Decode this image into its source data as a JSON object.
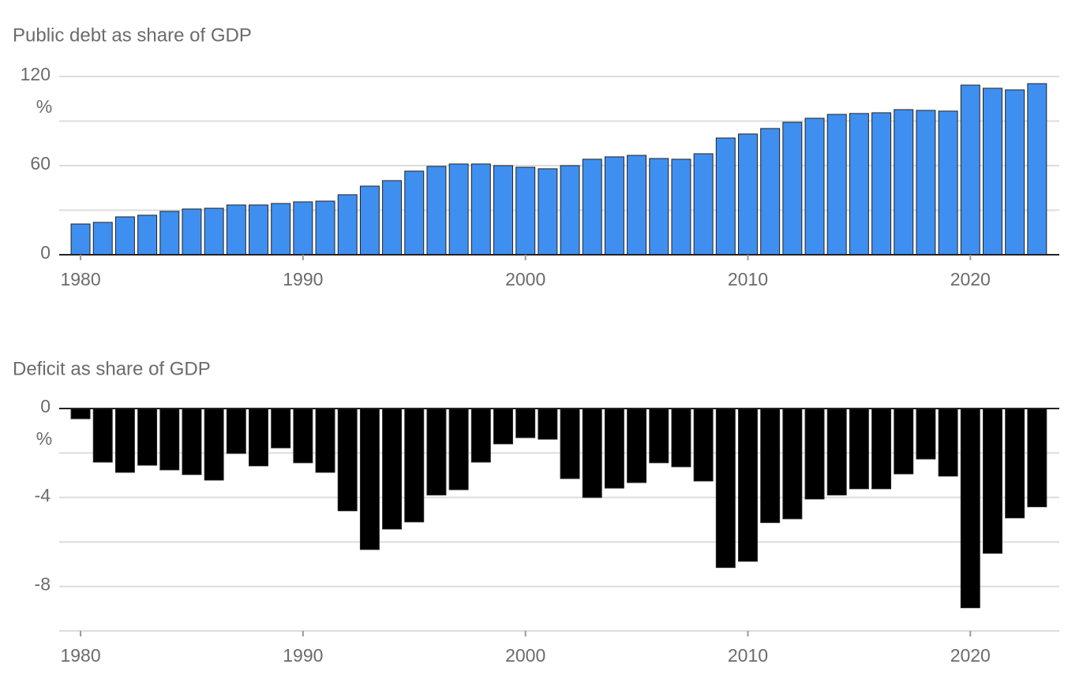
{
  "chart_data": [
    {
      "type": "bar",
      "title": "Public debt as share of GDP",
      "y_unit": "%",
      "x": [
        1980,
        1981,
        1982,
        1983,
        1984,
        1985,
        1986,
        1987,
        1988,
        1989,
        1990,
        1991,
        1992,
        1993,
        1994,
        1995,
        1996,
        1997,
        1998,
        1999,
        2000,
        2001,
        2002,
        2003,
        2004,
        2005,
        2006,
        2007,
        2008,
        2009,
        2010,
        2011,
        2012,
        2013,
        2014,
        2015,
        2016,
        2017,
        2018,
        2019,
        2020,
        2021,
        2022,
        2023
      ],
      "values": [
        20.7,
        21.8,
        25.5,
        26.6,
        29.2,
        30.8,
        31.3,
        33.5,
        33.5,
        34.5,
        35.6,
        36.1,
        40.4,
        46.2,
        49.9,
        56.3,
        59.5,
        61.1,
        61.1,
        60,
        58.9,
        57.9,
        60,
        64.3,
        65.9,
        66.9,
        64.8,
        64.3,
        68,
        78.6,
        81.3,
        85,
        89.2,
        91.9,
        94.5,
        95.1,
        95.6,
        97.7,
        97.2,
        96.7,
        114.2,
        112.1,
        111,
        115.2
      ],
      "color": "#3f8ff0",
      "xlim": [
        1979.04,
        2024
      ],
      "xticks": [
        1980,
        1990,
        2000,
        2010,
        2020
      ],
      "ylim": [
        0,
        120
      ],
      "yticks": [
        0,
        60,
        120
      ],
      "minor_yticks": [
        30,
        90
      ],
      "grid": true
    },
    {
      "type": "bar",
      "title": "Deficit as share of GDP",
      "y_unit": "%",
      "x": [
        1980,
        1981,
        1982,
        1983,
        1984,
        1985,
        1986,
        1987,
        1988,
        1989,
        1990,
        1991,
        1992,
        1993,
        1994,
        1995,
        1996,
        1997,
        1998,
        1999,
        2000,
        2001,
        2002,
        2003,
        2004,
        2005,
        2006,
        2007,
        2008,
        2009,
        2010,
        2011,
        2012,
        2013,
        2014,
        2015,
        2016,
        2017,
        2018,
        2019,
        2020,
        2021,
        2022,
        2023
      ],
      "values": [
        -0.46,
        -2.41,
        -2.87,
        -2.55,
        -2.76,
        -2.97,
        -3.22,
        -2.02,
        -2.58,
        -1.77,
        -2.44,
        -2.87,
        -4.6,
        -6.34,
        -5.42,
        -5.1,
        -3.89,
        -3.65,
        -2.41,
        -1.59,
        -1.31,
        -1.38,
        -3.15,
        -4.0,
        -3.58,
        -3.33,
        -2.44,
        -2.62,
        -3.26,
        -7.15,
        -6.87,
        -5.13,
        -4.96,
        -4.07,
        -3.89,
        -3.61,
        -3.61,
        -2.94,
        -2.27,
        -3.04,
        -8.96,
        -6.51,
        -4.92,
        -4.42
      ],
      "color": "#000000",
      "xlim": [
        1979.04,
        2024
      ],
      "xticks": [
        1980,
        1990,
        2000,
        2010,
        2020
      ],
      "ylim": [
        -10,
        0
      ],
      "yticks": [
        0,
        -4,
        -8
      ],
      "minor_yticks": [
        -2,
        -6
      ],
      "grid": true
    }
  ]
}
